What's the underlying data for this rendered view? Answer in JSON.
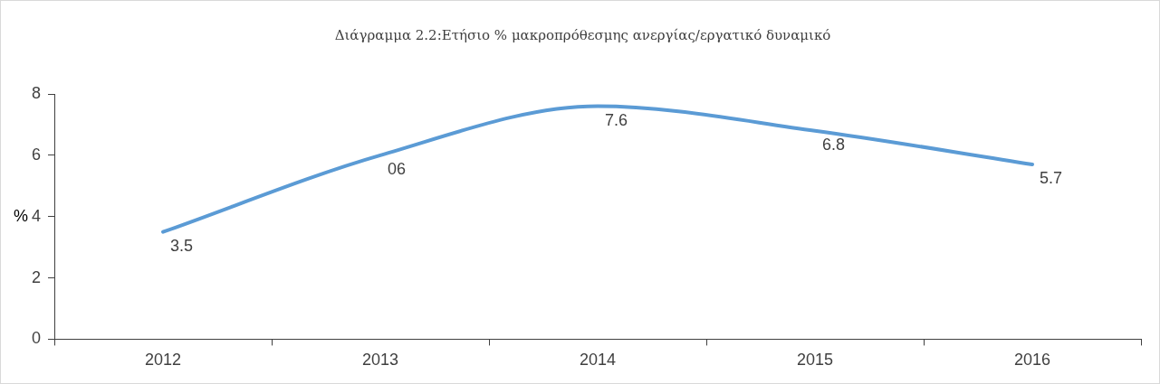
{
  "chart_data": {
    "type": "line",
    "title": "Διάγραμμα 2.2:Ετήσιο % μακροπρόθεσμης ανεργίας/εργατικό δυναμικό",
    "ylabel": "%",
    "categories": [
      "2012",
      "2013",
      "2014",
      "2015",
      "2016"
    ],
    "series": [
      {
        "color": "#5b9bd5",
        "values": [
          3.5,
          6,
          7.6,
          6.8,
          5.7
        ],
        "value_labels": [
          "3.5",
          "06",
          "7.6",
          "6.8",
          "5.7"
        ]
      }
    ],
    "ylim": [
      0,
      8
    ],
    "yticks": [
      0,
      2,
      4,
      6,
      8
    ],
    "grid": false,
    "legend": false,
    "marker": "none",
    "line_style": "solid"
  }
}
